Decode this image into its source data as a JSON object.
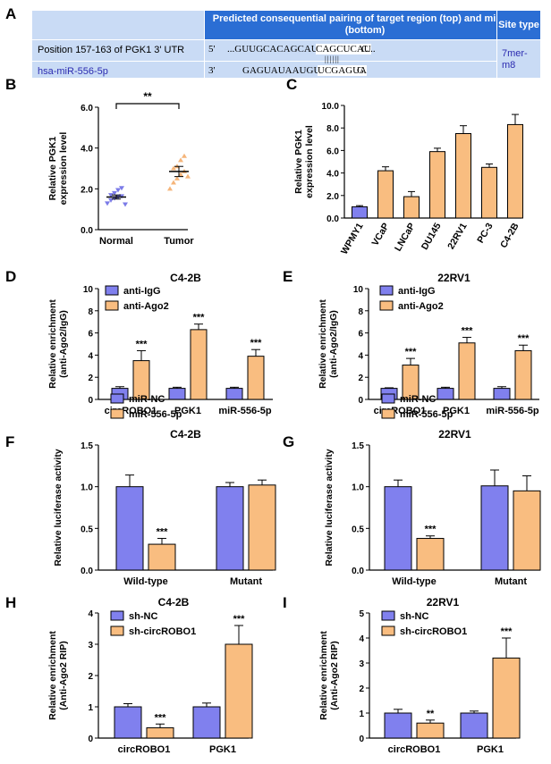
{
  "panel_a": {
    "letter": "A",
    "header_col2": "Predicted consequential pairing of target region (top) and miRNA (bottom)",
    "header_col3": "Site type",
    "row1_label": "Position 157-163 of PGK1 3' UTR",
    "row1_prime": "5'",
    "row1_seq_pre": "...GUUGCACAGCAUCU",
    "row1_seq_site": "CAGCUCAU",
    "row1_seq_post": "C...",
    "pairing": "||||||",
    "row2_label": "hsa-miR-556-5p",
    "row2_prime": "3'",
    "row2_seq_pre": "GAGUAUAAUGUUAC",
    "row2_seq_site": "UCGAGUA",
    "row2_seq_post": "G",
    "site_type": "7mer-m8"
  },
  "colors": {
    "blue": "#8080ee",
    "orange": "#f9bd80",
    "blue_pt": "#7b7be8",
    "orange_pt": "#f5b57a",
    "header": "#2b6ed4",
    "table_bg": "#c9dbf5"
  },
  "chart_data": [
    {
      "id": "B",
      "type": "scatter",
      "letter": "B",
      "ylabel": "Relative PGK1\nexpression level",
      "ylim": [
        0,
        6
      ],
      "yticks": [
        "0.0",
        "2.0",
        "4.0",
        "6.0"
      ],
      "ytick_values": [
        0,
        2,
        4,
        6
      ],
      "categories": [
        "Normal",
        "Tumor"
      ],
      "series": [
        {
          "name": "Normal",
          "mean": 1.6,
          "sem": 0.1,
          "points": [
            1.3,
            1.45,
            1.55,
            1.6,
            1.65,
            1.7,
            1.8,
            1.95,
            2.05,
            1.25
          ]
        },
        {
          "name": "Tumor",
          "mean": 2.85,
          "sem": 0.25,
          "points": [
            2.0,
            2.3,
            2.5,
            2.7,
            2.85,
            3.0,
            3.1,
            3.4,
            3.6,
            2.6
          ]
        }
      ],
      "significance": "**"
    },
    {
      "id": "C",
      "type": "bar",
      "letter": "C",
      "ylabel": "Relative PGK1\nexpression level",
      "ylim": [
        0,
        10
      ],
      "yticks": [
        "0.0",
        "2.0",
        "4.0",
        "6.0",
        "8.0",
        "10.0"
      ],
      "ytick_values": [
        0,
        2,
        4,
        6,
        8,
        10
      ],
      "categories": [
        "WPMY1",
        "VCaP",
        "LNCaP",
        "DU145",
        "22RV1",
        "PC-3",
        "C4-2B"
      ],
      "values": [
        1.0,
        4.2,
        1.9,
        5.9,
        7.5,
        4.5,
        8.3
      ],
      "errors": [
        0.1,
        0.35,
        0.45,
        0.3,
        0.7,
        0.3,
        0.9
      ]
    },
    {
      "id": "D",
      "type": "bar",
      "letter": "D",
      "title": "C4-2B",
      "ylabel": "Relative enrichment\n(anti-Ago2/IgG)",
      "ylim": [
        0,
        10
      ],
      "yticks": [
        "0",
        "2",
        "4",
        "6",
        "8",
        "10"
      ],
      "ytick_values": [
        0,
        2,
        4,
        6,
        8,
        10
      ],
      "categories": [
        "circROBO1",
        "PGK1",
        "miR-556-5p"
      ],
      "series": [
        {
          "name": "anti-IgG",
          "values": [
            1.0,
            1.0,
            1.0
          ],
          "errors": [
            0.15,
            0.1,
            0.1
          ]
        },
        {
          "name": "anti-Ago2",
          "values": [
            3.5,
            6.3,
            3.9
          ],
          "errors": [
            0.9,
            0.5,
            0.6
          ]
        }
      ],
      "significance": [
        "***",
        "***",
        "***"
      ]
    },
    {
      "id": "E",
      "type": "bar",
      "letter": "E",
      "title": "22RV1",
      "ylabel": "Relative enrichment\n(anti-Ago2/IgG)",
      "ylim": [
        0,
        10
      ],
      "yticks": [
        "0",
        "2",
        "4",
        "6",
        "8",
        "10"
      ],
      "ytick_values": [
        0,
        2,
        4,
        6,
        8,
        10
      ],
      "categories": [
        "circROBO1",
        "PGK1",
        "miR-556-5p"
      ],
      "series": [
        {
          "name": "anti-IgG",
          "values": [
            1.0,
            1.0,
            1.0
          ],
          "errors": [
            0.05,
            0.1,
            0.15
          ]
        },
        {
          "name": "anti-Ago2",
          "values": [
            3.1,
            5.1,
            4.4
          ],
          "errors": [
            0.6,
            0.5,
            0.5
          ]
        }
      ],
      "significance": [
        "***",
        "***",
        "***"
      ]
    },
    {
      "id": "F",
      "type": "bar",
      "letter": "F",
      "title": "C4-2B",
      "ylabel": "Relative luciferase activity",
      "ylim": [
        0,
        1.5
      ],
      "yticks": [
        "0.0",
        "0.5",
        "1.0",
        "1.5"
      ],
      "ytick_values": [
        0,
        0.5,
        1.0,
        1.5
      ],
      "categories": [
        "Wild-type",
        "Mutant"
      ],
      "series": [
        {
          "name": "miR-NC",
          "values": [
            1.0,
            1.0
          ],
          "errors": [
            0.14,
            0.05
          ]
        },
        {
          "name": "miR-556-5p",
          "values": [
            0.31,
            1.02
          ],
          "errors": [
            0.07,
            0.06
          ]
        }
      ],
      "significance": [
        "***",
        ""
      ]
    },
    {
      "id": "G",
      "type": "bar",
      "letter": "G",
      "title": "22RV1",
      "ylabel": "Relative luciferase activity",
      "ylim": [
        0,
        1.5
      ],
      "yticks": [
        "0.0",
        "0.5",
        "1.0",
        "1.5"
      ],
      "ytick_values": [
        0,
        0.5,
        1.0,
        1.5
      ],
      "categories": [
        "Wild-type",
        "Mutant"
      ],
      "series": [
        {
          "name": "miR-NC",
          "values": [
            1.0,
            1.01
          ],
          "errors": [
            0.08,
            0.19
          ]
        },
        {
          "name": "miR-556-5p",
          "values": [
            0.38,
            0.95
          ],
          "errors": [
            0.03,
            0.18
          ]
        }
      ],
      "significance": [
        "***",
        ""
      ]
    },
    {
      "id": "H",
      "type": "bar",
      "letter": "H",
      "title": "C4-2B",
      "ylabel": "Relative enrichment\n(Anti-Ago2 RIP)",
      "ylim": [
        0,
        4
      ],
      "yticks": [
        "0",
        "1",
        "2",
        "3",
        "4"
      ],
      "ytick_values": [
        0,
        1,
        2,
        3,
        4
      ],
      "categories": [
        "circROBO1",
        "PGK1"
      ],
      "series": [
        {
          "name": "sh-NC",
          "values": [
            1.0,
            1.0
          ],
          "errors": [
            0.1,
            0.12
          ]
        },
        {
          "name": "sh-circROBO1",
          "values": [
            0.33,
            3.0
          ],
          "errors": [
            0.12,
            0.6
          ]
        }
      ],
      "significance": [
        "***",
        "***"
      ]
    },
    {
      "id": "I",
      "type": "bar",
      "letter": "I",
      "title": "22RV1",
      "ylabel": "Relative enrichment\n(Anti-Ago2 RIP)",
      "ylim": [
        0,
        5
      ],
      "yticks": [
        "0",
        "1",
        "2",
        "3",
        "4",
        "5"
      ],
      "ytick_values": [
        0,
        1,
        2,
        3,
        4,
        5
      ],
      "categories": [
        "circROBO1",
        "PGK1"
      ],
      "series": [
        {
          "name": "sh-NC",
          "values": [
            1.0,
            1.0
          ],
          "errors": [
            0.15,
            0.08
          ]
        },
        {
          "name": "sh-circROBO1",
          "values": [
            0.6,
            3.2
          ],
          "errors": [
            0.12,
            0.8
          ]
        }
      ],
      "significance": [
        "**",
        "***"
      ]
    }
  ]
}
